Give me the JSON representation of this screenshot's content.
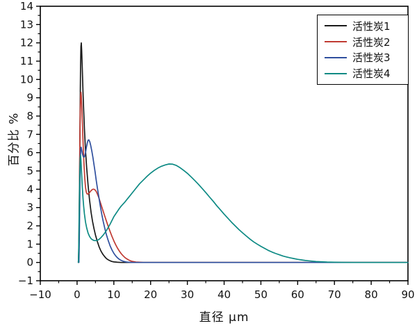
{
  "chart_data": {
    "type": "line",
    "title": "",
    "xlabel": "直径 μm",
    "ylabel": "百分比 %",
    "xlim": [
      -10,
      90
    ],
    "ylim": [
      -1,
      14
    ],
    "x_major_ticks": [
      -10,
      0,
      10,
      20,
      30,
      40,
      50,
      60,
      70,
      80,
      90
    ],
    "y_major_ticks": [
      -1,
      0,
      1,
      2,
      3,
      4,
      5,
      6,
      7,
      8,
      9,
      10,
      11,
      12,
      13,
      14
    ],
    "x_minor_step": 5,
    "y_minor_step": 0.5,
    "grid": "off",
    "legend_position": "top-right",
    "background_color": "#ffffff",
    "axis_color": "#000000",
    "series": [
      {
        "name": "活性炭1",
        "color": "#1a1a1a",
        "peak": {
          "x": 1.1,
          "y": 12.0
        },
        "points": [
          [
            0.35,
            0
          ],
          [
            0.45,
            0.4
          ],
          [
            0.55,
            1.5
          ],
          [
            0.65,
            3.5
          ],
          [
            0.75,
            6.2
          ],
          [
            0.85,
            8.8
          ],
          [
            0.95,
            10.8
          ],
          [
            1.05,
            11.8
          ],
          [
            1.15,
            12.0
          ],
          [
            1.25,
            11.6
          ],
          [
            1.4,
            10.7
          ],
          [
            1.6,
            9.4
          ],
          [
            1.8,
            8.3
          ],
          [
            2.0,
            7.3
          ],
          [
            2.3,
            6.1
          ],
          [
            2.6,
            5.2
          ],
          [
            3.0,
            4.2
          ],
          [
            3.4,
            3.4
          ],
          [
            3.8,
            2.75
          ],
          [
            4.2,
            2.25
          ],
          [
            4.6,
            1.85
          ],
          [
            5.0,
            1.5
          ],
          [
            5.5,
            1.15
          ],
          [
            6.0,
            0.85
          ],
          [
            6.5,
            0.62
          ],
          [
            7.0,
            0.45
          ],
          [
            7.5,
            0.32
          ],
          [
            8.0,
            0.21
          ],
          [
            8.5,
            0.14
          ],
          [
            9.0,
            0.09
          ],
          [
            9.5,
            0.05
          ],
          [
            10.0,
            0.03
          ],
          [
            10.5,
            0.02
          ],
          [
            11.0,
            0.01
          ],
          [
            12.0,
            0
          ],
          [
            90,
            0
          ]
        ]
      },
      {
        "name": "活性炭2",
        "color": "#c03a32",
        "peak": {
          "x": 1.05,
          "y": 9.3
        },
        "points": [
          [
            0.35,
            0
          ],
          [
            0.45,
            0.6
          ],
          [
            0.55,
            2.0
          ],
          [
            0.65,
            4.2
          ],
          [
            0.75,
            6.5
          ],
          [
            0.85,
            8.2
          ],
          [
            0.95,
            9.1
          ],
          [
            1.05,
            9.3
          ],
          [
            1.15,
            9.1
          ],
          [
            1.3,
            8.4
          ],
          [
            1.5,
            7.3
          ],
          [
            1.7,
            6.2
          ],
          [
            1.9,
            5.3
          ],
          [
            2.1,
            4.6
          ],
          [
            2.3,
            4.1
          ],
          [
            2.5,
            3.85
          ],
          [
            2.7,
            3.75
          ],
          [
            2.9,
            3.73
          ],
          [
            3.1,
            3.76
          ],
          [
            3.4,
            3.82
          ],
          [
            3.7,
            3.9
          ],
          [
            4.0,
            3.96
          ],
          [
            4.3,
            4.0
          ],
          [
            4.6,
            4.0
          ],
          [
            4.9,
            3.96
          ],
          [
            5.2,
            3.88
          ],
          [
            5.5,
            3.75
          ],
          [
            5.9,
            3.55
          ],
          [
            6.3,
            3.3
          ],
          [
            6.7,
            3.05
          ],
          [
            7.1,
            2.8
          ],
          [
            7.5,
            2.55
          ],
          [
            8.0,
            2.25
          ],
          [
            8.5,
            1.95
          ],
          [
            9.0,
            1.68
          ],
          [
            9.5,
            1.42
          ],
          [
            10.0,
            1.18
          ],
          [
            10.5,
            0.97
          ],
          [
            11.0,
            0.78
          ],
          [
            11.5,
            0.62
          ],
          [
            12.0,
            0.48
          ],
          [
            12.5,
            0.37
          ],
          [
            13.0,
            0.27
          ],
          [
            13.5,
            0.2
          ],
          [
            14.0,
            0.14
          ],
          [
            14.5,
            0.09
          ],
          [
            15.0,
            0.06
          ],
          [
            15.5,
            0.04
          ],
          [
            16.0,
            0.02
          ],
          [
            17.0,
            0.01
          ],
          [
            18.0,
            0
          ],
          [
            90,
            0
          ]
        ]
      },
      {
        "name": "活性炭3",
        "color": "#2f4f9e",
        "peak": {
          "x": 3.1,
          "y": 6.7
        },
        "points": [
          [
            0.5,
            0
          ],
          [
            0.6,
            1.0
          ],
          [
            0.7,
            2.8
          ],
          [
            0.8,
            4.6
          ],
          [
            0.9,
            5.8
          ],
          [
            1.0,
            6.25
          ],
          [
            1.1,
            6.3
          ],
          [
            1.25,
            6.15
          ],
          [
            1.45,
            5.95
          ],
          [
            1.65,
            5.8
          ],
          [
            1.85,
            5.75
          ],
          [
            2.05,
            5.8
          ],
          [
            2.3,
            6.0
          ],
          [
            2.55,
            6.3
          ],
          [
            2.8,
            6.55
          ],
          [
            3.0,
            6.68
          ],
          [
            3.2,
            6.7
          ],
          [
            3.45,
            6.6
          ],
          [
            3.7,
            6.4
          ],
          [
            4.0,
            6.1
          ],
          [
            4.3,
            5.75
          ],
          [
            4.6,
            5.35
          ],
          [
            4.9,
            4.95
          ],
          [
            5.2,
            4.5
          ],
          [
            5.5,
            4.1
          ],
          [
            5.9,
            3.6
          ],
          [
            6.3,
            3.1
          ],
          [
            6.7,
            2.65
          ],
          [
            7.1,
            2.25
          ],
          [
            7.5,
            1.9
          ],
          [
            8.0,
            1.5
          ],
          [
            8.5,
            1.18
          ],
          [
            9.0,
            0.9
          ],
          [
            9.5,
            0.68
          ],
          [
            10.0,
            0.5
          ],
          [
            10.5,
            0.36
          ],
          [
            11.0,
            0.25
          ],
          [
            11.5,
            0.17
          ],
          [
            12.0,
            0.11
          ],
          [
            12.5,
            0.07
          ],
          [
            13.0,
            0.04
          ],
          [
            13.5,
            0.02
          ],
          [
            14.0,
            0.01
          ],
          [
            15.0,
            0
          ],
          [
            90,
            0
          ]
        ]
      },
      {
        "name": "活性炭4",
        "color": "#0d8a84",
        "peak": {
          "x": 25,
          "y": 5.38
        },
        "points": [
          [
            0.35,
            0
          ],
          [
            0.45,
            0.8
          ],
          [
            0.55,
            2.4
          ],
          [
            0.65,
            4.0
          ],
          [
            0.75,
            5.1
          ],
          [
            0.85,
            5.7
          ],
          [
            0.95,
            5.85
          ],
          [
            1.05,
            5.6
          ],
          [
            1.2,
            5.0
          ],
          [
            1.4,
            4.2
          ],
          [
            1.6,
            3.55
          ],
          [
            1.8,
            3.05
          ],
          [
            2.0,
            2.65
          ],
          [
            2.3,
            2.2
          ],
          [
            2.6,
            1.9
          ],
          [
            3.0,
            1.6
          ],
          [
            3.4,
            1.42
          ],
          [
            3.8,
            1.3
          ],
          [
            4.2,
            1.24
          ],
          [
            4.6,
            1.2
          ],
          [
            5.0,
            1.19
          ],
          [
            5.4,
            1.2
          ],
          [
            5.8,
            1.24
          ],
          [
            6.2,
            1.3
          ],
          [
            6.6,
            1.38
          ],
          [
            7.0,
            1.47
          ],
          [
            7.5,
            1.6
          ],
          [
            8.0,
            1.75
          ],
          [
            8.5,
            1.92
          ],
          [
            9.0,
            2.1
          ],
          [
            9.5,
            2.3
          ],
          [
            10.0,
            2.5
          ],
          [
            10.5,
            2.65
          ],
          [
            11.0,
            2.8
          ],
          [
            11.5,
            2.95
          ],
          [
            12.0,
            3.08
          ],
          [
            13.0,
            3.3
          ],
          [
            14.0,
            3.55
          ],
          [
            15.0,
            3.8
          ],
          [
            16.0,
            4.05
          ],
          [
            17.0,
            4.3
          ],
          [
            18.0,
            4.5
          ],
          [
            19.0,
            4.7
          ],
          [
            20.0,
            4.88
          ],
          [
            21.0,
            5.03
          ],
          [
            22.0,
            5.16
          ],
          [
            23.0,
            5.26
          ],
          [
            24.0,
            5.33
          ],
          [
            25.0,
            5.38
          ],
          [
            26.0,
            5.37
          ],
          [
            27.0,
            5.3
          ],
          [
            28.0,
            5.18
          ],
          [
            29.0,
            5.03
          ],
          [
            30.0,
            4.87
          ],
          [
            31.0,
            4.68
          ],
          [
            32.0,
            4.48
          ],
          [
            33.0,
            4.27
          ],
          [
            34.0,
            4.05
          ],
          [
            35.0,
            3.82
          ],
          [
            36.0,
            3.58
          ],
          [
            37.0,
            3.35
          ],
          [
            38.0,
            3.1
          ],
          [
            39.0,
            2.87
          ],
          [
            40.0,
            2.64
          ],
          [
            41.0,
            2.42
          ],
          [
            42.0,
            2.2
          ],
          [
            43.0,
            2.0
          ],
          [
            44.0,
            1.8
          ],
          [
            45.0,
            1.62
          ],
          [
            46.0,
            1.45
          ],
          [
            47.0,
            1.28
          ],
          [
            48.0,
            1.13
          ],
          [
            49.0,
            1.0
          ],
          [
            50.0,
            0.88
          ],
          [
            51.0,
            0.77
          ],
          [
            52.0,
            0.66
          ],
          [
            53.0,
            0.57
          ],
          [
            54.0,
            0.49
          ],
          [
            55.0,
            0.42
          ],
          [
            56.0,
            0.35
          ],
          [
            57.0,
            0.3
          ],
          [
            58.0,
            0.25
          ],
          [
            59.0,
            0.21
          ],
          [
            60.0,
            0.17
          ],
          [
            61.0,
            0.14
          ],
          [
            62.0,
            0.11
          ],
          [
            63.0,
            0.09
          ],
          [
            64.0,
            0.07
          ],
          [
            65.0,
            0.05
          ],
          [
            66.0,
            0.04
          ],
          [
            67.0,
            0.03
          ],
          [
            68.0,
            0.02
          ],
          [
            69.0,
            0.015
          ],
          [
            70.0,
            0.01
          ],
          [
            72.0,
            0.005
          ],
          [
            75.0,
            0
          ],
          [
            90,
            0
          ]
        ]
      }
    ]
  },
  "legend": {
    "entries": [
      {
        "label": "活性炭1"
      },
      {
        "label": "活性炭2"
      },
      {
        "label": "活性炭3"
      },
      {
        "label": "活性炭4"
      }
    ]
  }
}
